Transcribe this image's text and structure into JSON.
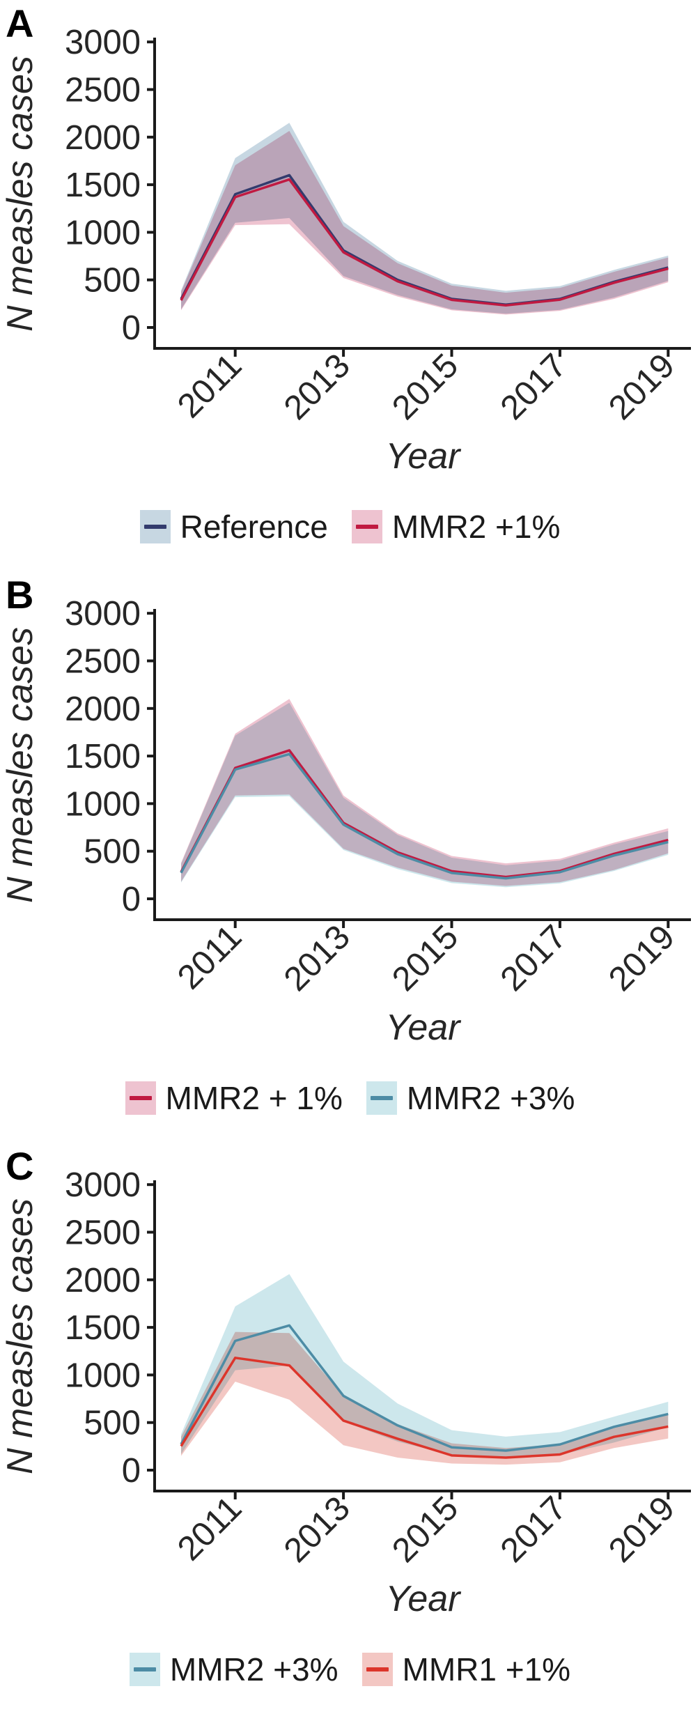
{
  "figure": {
    "x_label": "Year",
    "y_label": "N measles cases",
    "y_ticks": [
      0,
      500,
      1000,
      1500,
      2000,
      2500,
      3000
    ],
    "x_ticks": [
      2011,
      2013,
      2015,
      2017,
      2019
    ],
    "years": [
      2010,
      2011,
      2012,
      2013,
      2014,
      2015,
      2016,
      2017,
      2018,
      2019
    ]
  },
  "chart_data": [
    {
      "type": "line",
      "panel": "A",
      "xlabel": "Year",
      "ylabel": "N measles cases",
      "x": [
        2010,
        2011,
        2012,
        2013,
        2014,
        2015,
        2016,
        2017,
        2018,
        2019
      ],
      "ylim": [
        0,
        3000
      ],
      "legend_position": "bottom",
      "grid": false,
      "series": [
        {
          "name": "Reference",
          "line_color": "#333b6d",
          "band_color": "#c7d7e2",
          "values": [
            300,
            1400,
            1600,
            810,
            500,
            300,
            240,
            300,
            480,
            630
          ],
          "lower": [
            190,
            1100,
            1150,
            540,
            340,
            190,
            145,
            185,
            315,
            490
          ],
          "upper": [
            390,
            1780,
            2150,
            1110,
            700,
            460,
            385,
            435,
            605,
            755
          ]
        },
        {
          "name": "MMR2 +1%",
          "line_color": "#c01a41",
          "band_color": "#eec3d0",
          "values": [
            285,
            1370,
            1555,
            790,
            485,
            290,
            232,
            292,
            470,
            618
          ],
          "lower": [
            180,
            1075,
            1085,
            520,
            325,
            180,
            135,
            175,
            300,
            475
          ],
          "upper": [
            375,
            1705,
            2065,
            1065,
            675,
            440,
            365,
            415,
            585,
            735
          ]
        }
      ]
    },
    {
      "type": "line",
      "panel": "B",
      "xlabel": "Year",
      "ylabel": "N measles cases",
      "x": [
        2010,
        2011,
        2012,
        2013,
        2014,
        2015,
        2016,
        2017,
        2018,
        2019
      ],
      "ylim": [
        0,
        3000
      ],
      "legend_position": "bottom",
      "grid": false,
      "series": [
        {
          "name": "MMR2 + 1%",
          "line_color": "#c01a41",
          "band_color": "#eec3d0",
          "values": [
            282,
            1375,
            1560,
            798,
            488,
            290,
            230,
            293,
            473,
            618
          ],
          "lower": [
            178,
            1085,
            1095,
            525,
            328,
            180,
            135,
            175,
            303,
            478
          ],
          "upper": [
            378,
            1735,
            2100,
            1085,
            688,
            450,
            372,
            420,
            590,
            740
          ]
        },
        {
          "name": "MMR2 +3%",
          "line_color": "#4d8ca5",
          "band_color": "#cde7ec",
          "values": [
            272,
            1358,
            1520,
            780,
            470,
            272,
            215,
            280,
            455,
            596
          ],
          "lower": [
            170,
            1068,
            1078,
            512,
            312,
            165,
            122,
            162,
            292,
            462
          ],
          "upper": [
            368,
            1715,
            2060,
            1062,
            672,
            432,
            352,
            402,
            572,
            712
          ]
        }
      ]
    },
    {
      "type": "line",
      "panel": "C",
      "xlabel": "Year",
      "ylabel": "N measles cases",
      "x": [
        2010,
        2011,
        2012,
        2013,
        2014,
        2015,
        2016,
        2017,
        2018,
        2019
      ],
      "ylim": [
        0,
        3000
      ],
      "legend_position": "bottom",
      "grid": false,
      "series": [
        {
          "name": "MMR2 +3%",
          "line_color": "#4d8ca5",
          "band_color": "#cde7ec",
          "values": [
            272,
            1358,
            1520,
            780,
            470,
            240,
            205,
            270,
            455,
            590
          ],
          "lower": [
            168,
            1050,
            1100,
            510,
            300,
            160,
            122,
            162,
            290,
            452
          ],
          "upper": [
            378,
            1720,
            2060,
            1140,
            700,
            420,
            352,
            400,
            562,
            718
          ]
        },
        {
          "name": "MMR1 +1%",
          "line_color": "#dc352b",
          "band_color": "#f3c7c3",
          "values": [
            252,
            1180,
            1100,
            520,
            330,
            155,
            132,
            165,
            350,
            458
          ],
          "lower": [
            150,
            930,
            740,
            262,
            132,
            70,
            58,
            82,
            232,
            332
          ],
          "upper": [
            352,
            1452,
            1440,
            782,
            482,
            282,
            232,
            272,
            462,
            582
          ]
        }
      ]
    }
  ],
  "panel_letters": {
    "0": "A",
    "1": "B",
    "2": "C"
  }
}
